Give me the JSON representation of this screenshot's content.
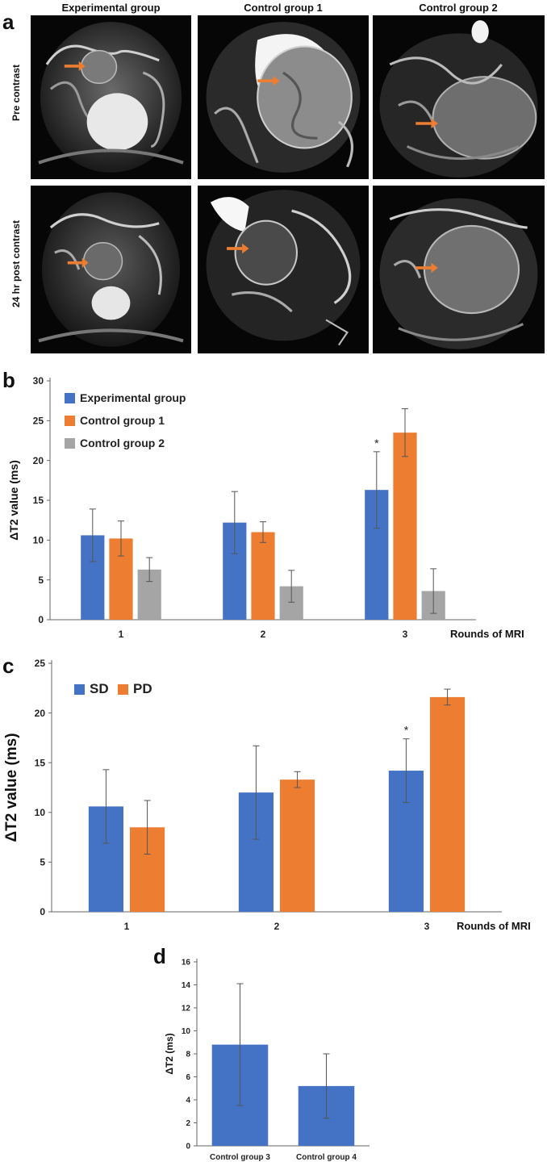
{
  "panels": {
    "a_label": "a",
    "b_label": "b",
    "c_label": "c",
    "d_label": "d"
  },
  "figure_a": {
    "columns": [
      "Experimental group",
      "Control group 1",
      "Control group 2"
    ],
    "rows": [
      "Pre contrast",
      "24 hr post contrast"
    ],
    "arrow_color": "#ED7D31"
  },
  "chart_data": [
    {
      "id": "b",
      "type": "bar",
      "categories": [
        "1",
        "2",
        "3"
      ],
      "xlabel": "Rounds of MRI",
      "ylabel": "ΔT2 value (ms)",
      "ylim": [
        0,
        30
      ],
      "yticks": [
        0,
        5,
        10,
        15,
        20,
        25,
        30
      ],
      "grid": false,
      "legend": "top-left",
      "series": [
        {
          "name": "Experimental group",
          "color": "#4472C4",
          "values": [
            10.6,
            12.2,
            16.3
          ],
          "errors": [
            3.3,
            3.9,
            4.8
          ]
        },
        {
          "name": "Control group 1",
          "color": "#ED7D31",
          "values": [
            10.2,
            11.0,
            23.5
          ],
          "errors": [
            2.2,
            1.3,
            3.0
          ]
        },
        {
          "name": "Control group 2",
          "color": "#A5A5A5",
          "values": [
            6.3,
            4.2,
            3.6
          ],
          "errors": [
            1.5,
            2.0,
            2.8
          ]
        }
      ],
      "annotations": [
        {
          "category": "3",
          "series": "Experimental group",
          "text": "*"
        }
      ]
    },
    {
      "id": "c",
      "type": "bar",
      "categories": [
        "1",
        "2",
        "3"
      ],
      "xlabel": "Rounds of MRI",
      "ylabel": "ΔT2 value (ms)",
      "ylim": [
        0,
        25
      ],
      "yticks": [
        0,
        5,
        10,
        15,
        20,
        25
      ],
      "grid": false,
      "legend": "top-left",
      "series": [
        {
          "name": "SD",
          "color": "#4472C4",
          "values": [
            10.6,
            12.0,
            14.2
          ],
          "errors": [
            3.7,
            4.7,
            3.2
          ]
        },
        {
          "name": "PD",
          "color": "#ED7D31",
          "values": [
            8.5,
            13.3,
            21.6
          ],
          "errors": [
            2.7,
            0.8,
            0.8
          ]
        }
      ],
      "annotations": [
        {
          "category": "3",
          "series": "SD",
          "text": "*"
        }
      ]
    },
    {
      "id": "d",
      "type": "bar",
      "categories": [
        "Control group 3",
        "Control group 4"
      ],
      "xlabel": "",
      "ylabel": "ΔT2 (ms)",
      "ylim": [
        0,
        16
      ],
      "yticks": [
        0,
        2,
        4,
        6,
        8,
        10,
        12,
        14,
        16
      ],
      "grid": false,
      "series": [
        {
          "name": "ΔT2",
          "color": "#4472C4",
          "values": [
            8.8,
            5.2
          ],
          "errors": [
            5.3,
            2.8
          ]
        }
      ]
    }
  ]
}
